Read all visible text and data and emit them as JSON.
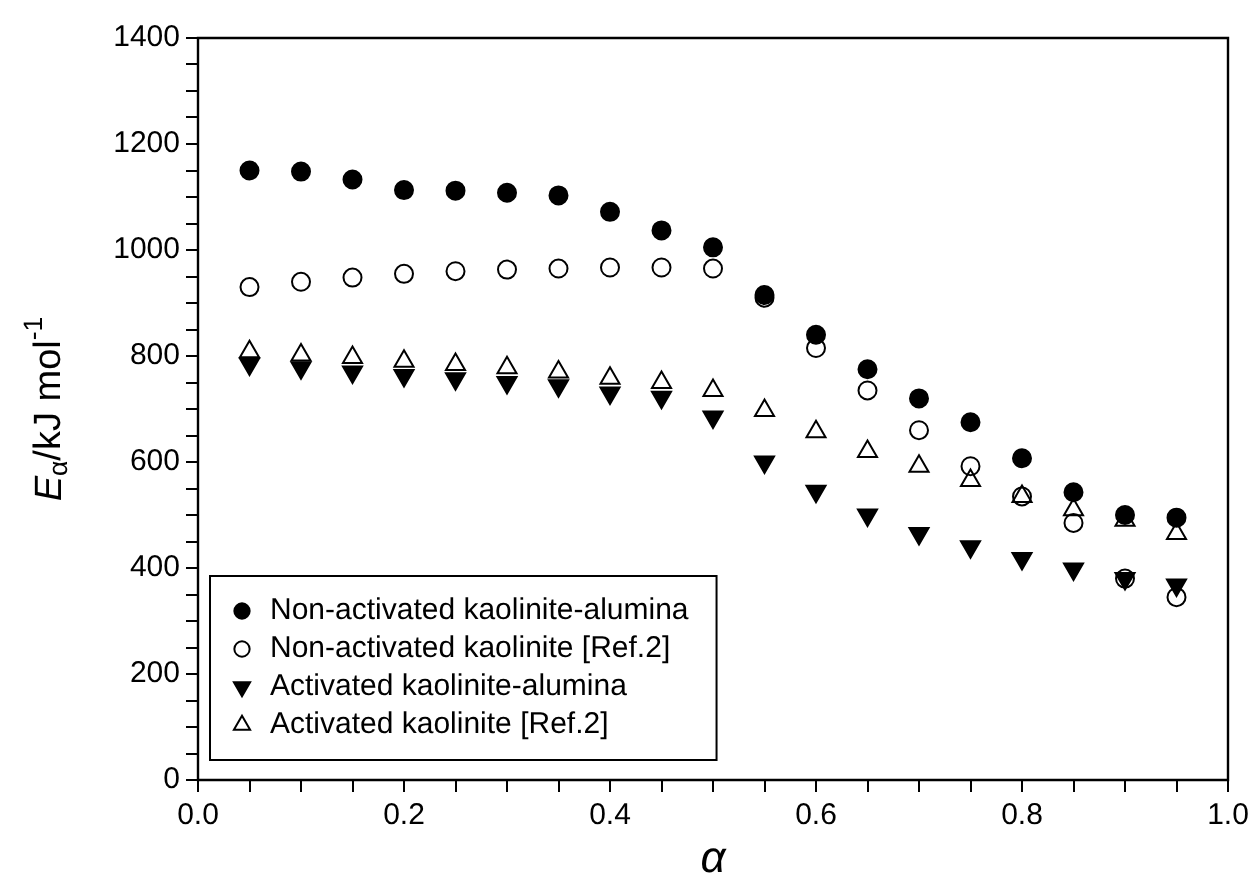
{
  "chart_data": {
    "type": "scatter",
    "xlabel": "α",
    "ylabel": "E$_{α}$/kJ mol$^{-1}$",
    "xlim": [
      0,
      1
    ],
    "ylim": [
      0,
      1400
    ],
    "xticks": [
      {
        "value": 0,
        "label": "0.0"
      },
      {
        "value": 0.05,
        "label": null
      },
      {
        "value": 0.1,
        "label": null
      },
      {
        "value": 0.15,
        "label": null
      },
      {
        "value": 0.2,
        "label": "0.2"
      },
      {
        "value": 0.25,
        "label": null
      },
      {
        "value": 0.3,
        "label": null
      },
      {
        "value": 0.35,
        "label": null
      },
      {
        "value": 0.4,
        "label": "0.4"
      },
      {
        "value": 0.45,
        "label": null
      },
      {
        "value": 0.5,
        "label": null
      },
      {
        "value": 0.55,
        "label": null
      },
      {
        "value": 0.6,
        "label": "0.6"
      },
      {
        "value": 0.65,
        "label": null
      },
      {
        "value": 0.7,
        "label": null
      },
      {
        "value": 0.75,
        "label": null
      },
      {
        "value": 0.8,
        "label": "0.8"
      },
      {
        "value": 0.85,
        "label": null
      },
      {
        "value": 0.9,
        "label": null
      },
      {
        "value": 0.95,
        "label": null
      },
      {
        "value": 1,
        "label": "1.0"
      }
    ],
    "yticks": [
      0,
      {
        "value": 50,
        "label": null
      },
      {
        "value": 100,
        "label": null
      },
      {
        "value": 150,
        "label": null
      },
      200,
      {
        "value": 250,
        "label": null
      },
      {
        "value": 300,
        "label": null
      },
      {
        "value": 350,
        "label": null
      },
      400,
      {
        "value": 450,
        "label": null
      },
      {
        "value": 500,
        "label": null
      },
      {
        "value": 550,
        "label": null
      },
      600,
      {
        "value": 650,
        "label": null
      },
      {
        "value": 700,
        "label": null
      },
      {
        "value": 750,
        "label": null
      },
      800,
      {
        "value": 850,
        "label": null
      },
      {
        "value": 900,
        "label": null
      },
      {
        "value": 950,
        "label": null
      },
      1000,
      {
        "value": 1050,
        "label": null
      },
      {
        "value": 1100,
        "label": null
      },
      {
        "value": 1150,
        "label": null
      },
      1200,
      {
        "value": 1250,
        "label": null
      },
      {
        "value": 1300,
        "label": null
      },
      {
        "value": 1350,
        "label": null
      },
      1400
    ],
    "x": [
      0.05,
      0.1,
      0.15,
      0.2,
      0.25,
      0.3,
      0.35,
      0.4,
      0.45,
      0.5,
      0.55,
      0.6,
      0.65,
      0.7,
      0.75,
      0.8,
      0.85,
      0.9,
      0.95
    ],
    "grid": false,
    "legend": "bottom left",
    "series": [
      {
        "name": "Non-activated kaolinite-alumina",
        "color": "#000000",
        "marker": "circle",
        "values": [
          1150,
          1148,
          1133,
          1113,
          1112,
          1108,
          1103,
          1072,
          1037,
          1005,
          915,
          840,
          775,
          720,
          675,
          607,
          543,
          500,
          495
        ]
      },
      {
        "name": "Non-activated kaolinite [Ref.2]",
        "color": "#000000",
        "marker": "circle-open",
        "values": [
          930,
          940,
          948,
          955,
          960,
          963,
          965,
          967,
          967,
          965,
          910,
          815,
          735,
          660,
          592,
          535,
          485,
          380,
          345
        ]
      },
      {
        "name": "Activated kaolinite-alumina",
        "color": "#000000",
        "marker": "triangle-down",
        "values": [
          785,
          778,
          770,
          763,
          757,
          750,
          744,
          730,
          722,
          685,
          600,
          545,
          500,
          465,
          440,
          418,
          398,
          380,
          368
        ]
      },
      {
        "name": "Activated kaolinite [Ref.2]",
        "color": "#000000",
        "marker": "triangle-open",
        "values": [
          808,
          802,
          797,
          790,
          784,
          778,
          770,
          758,
          750,
          735,
          697,
          657,
          620,
          592,
          565,
          535,
          510,
          490,
          465
        ]
      }
    ]
  }
}
